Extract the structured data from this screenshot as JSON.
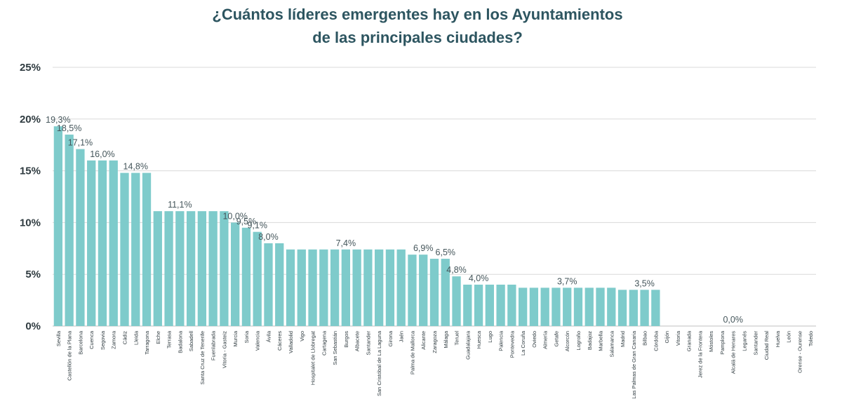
{
  "chart_data": {
    "type": "bar",
    "title_line1": "¿Cuántos líderes emergentes hay en los Ayuntamientos",
    "title_line2": "de las principales ciudades?",
    "xlabel": "",
    "ylabel": "",
    "ylim": [
      0,
      25
    ],
    "yticks": [
      0,
      5,
      10,
      15,
      20,
      25
    ],
    "ytick_labels": [
      "0%",
      "5%",
      "10%",
      "15%",
      "20%",
      "25%"
    ],
    "grid": "horizontal",
    "legend": "none",
    "bar_color": "#7ecbcb",
    "categories": [
      "Sevilla",
      "Castellón de la Plana",
      "Barcelona",
      "Cuenca",
      "Segovia",
      "Zamora",
      "Cádiz",
      "Lleida",
      "Tarragona",
      "Elche",
      "Terrasa",
      "Badalona",
      "Sabadell",
      "Santa Cruz de Tenerife",
      "Fuenlabrada",
      "Vitoria - Gasteiz",
      "Murcia",
      "Soria",
      "Valencia",
      "Ávila",
      "Cáceres",
      "Valladolid",
      "Vigo",
      "Hospitalet de Llobregat",
      "Cartagena",
      "San Sebastián",
      "Burgos",
      "Albacete",
      "Santander",
      "San Cristóbal de La Laguna",
      "Girona",
      "Jaén",
      "Palma de Mallorca",
      "Alicante",
      "Zaragoza",
      "Málaga",
      "Teruel",
      "Guadalajara",
      "Huesca",
      "Lugo",
      "Palencia",
      "Pontevedra",
      "La Coruña",
      "Oviedo",
      "Almería",
      "Getafe",
      "Alcorcón",
      "Logroño",
      "Badajoz",
      "Marbella",
      "Salamanca",
      "Madrid",
      "Las Palmas de Gran Canaria",
      "Bilbao",
      "Córdoba",
      "Gijón",
      "Vitoria",
      "Granada",
      "Jerez de la Frontera",
      "Móstoles",
      "Pamplona",
      "Alcalá de Henares",
      "Leganés",
      "Santander",
      "Ciudad Real",
      "Huelva",
      "León",
      "Orense - Ourense",
      "Toledo"
    ],
    "values": [
      19.3,
      18.5,
      17.1,
      16.0,
      16.0,
      16.0,
      14.8,
      14.8,
      14.8,
      11.1,
      11.1,
      11.1,
      11.1,
      11.1,
      11.1,
      11.1,
      10.0,
      9.5,
      9.1,
      8.0,
      8.0,
      7.4,
      7.4,
      7.4,
      7.4,
      7.4,
      7.4,
      7.4,
      7.4,
      7.4,
      7.4,
      7.4,
      6.9,
      6.9,
      6.5,
      6.5,
      4.8,
      4.0,
      4.0,
      4.0,
      4.0,
      4.0,
      3.7,
      3.7,
      3.7,
      3.7,
      3.7,
      3.7,
      3.7,
      3.7,
      3.7,
      3.5,
      3.5,
      3.5,
      3.5,
      0,
      0,
      0,
      0,
      0,
      0,
      0,
      0,
      0,
      0,
      0,
      0,
      0,
      0
    ],
    "data_labels": [
      {
        "index": 0,
        "text": "19,3%"
      },
      {
        "index": 1,
        "text": "18,5%"
      },
      {
        "index": 2,
        "text": "17,1%"
      },
      {
        "index": 4,
        "text": "16,0%"
      },
      {
        "index": 7,
        "text": "14,8%"
      },
      {
        "index": 11,
        "text": "11,1%"
      },
      {
        "index": 16,
        "text": "10,0%"
      },
      {
        "index": 17,
        "text": "9,5%"
      },
      {
        "index": 18,
        "text": "9,1%"
      },
      {
        "index": 19,
        "text": "8,0%"
      },
      {
        "index": 26,
        "text": "7,4%"
      },
      {
        "index": 33,
        "text": "6,9%"
      },
      {
        "index": 35,
        "text": "6,5%"
      },
      {
        "index": 36,
        "text": "4,8%"
      },
      {
        "index": 38,
        "text": "4,0%"
      },
      {
        "index": 46,
        "text": "3,7%"
      },
      {
        "index": 53,
        "text": "3,5%"
      },
      {
        "index": 61,
        "text": "0,0%"
      }
    ]
  }
}
